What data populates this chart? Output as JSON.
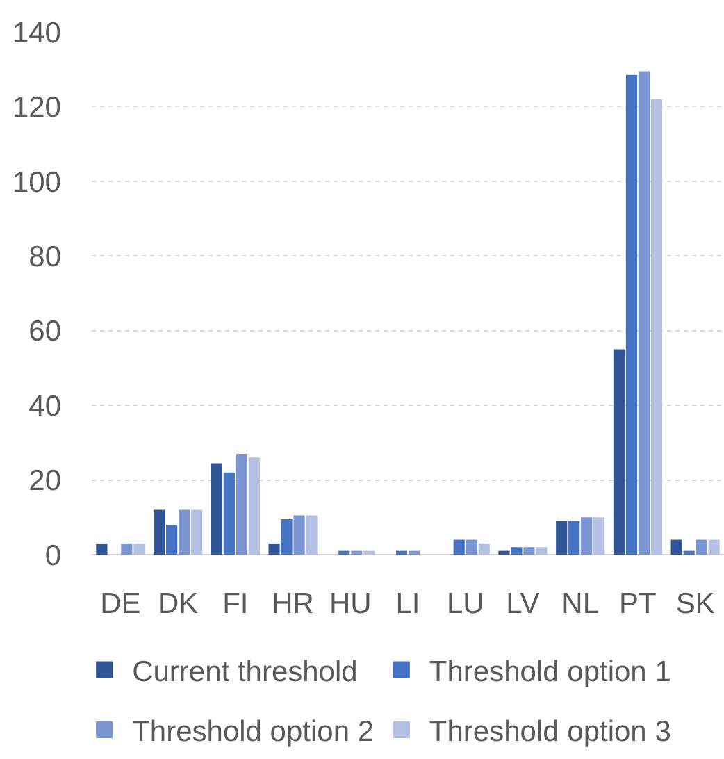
{
  "chart_data": {
    "type": "bar",
    "categories": [
      "DE",
      "DK",
      "FI",
      "HR",
      "HU",
      "LI",
      "LU",
      "LV",
      "NL",
      "PT",
      "SK"
    ],
    "series": [
      {
        "name": "Current threshold",
        "color": "#2f5597",
        "values": [
          3,
          12,
          24.5,
          3,
          0,
          0,
          0,
          1,
          9,
          55,
          4
        ]
      },
      {
        "name": "Threshold option 1",
        "color": "#4472c4",
        "values": [
          0,
          8,
          22,
          9.5,
          1,
          1,
          4,
          2,
          9,
          128.5,
          1
        ]
      },
      {
        "name": "Threshold option 2",
        "color": "#7b95d3",
        "values": [
          3,
          12,
          27,
          10.5,
          1,
          1,
          4,
          2,
          10,
          129.5,
          4
        ]
      },
      {
        "name": "Threshold option 3",
        "color": "#b4c1e4",
        "values": [
          3,
          12,
          26,
          10.5,
          1,
          0,
          3,
          2,
          10,
          122,
          4
        ]
      }
    ],
    "ylim": [
      0,
      140
    ],
    "yticks": [
      0,
      20,
      40,
      60,
      80,
      100,
      120,
      140
    ],
    "grid": "y",
    "legend": "bottom"
  }
}
